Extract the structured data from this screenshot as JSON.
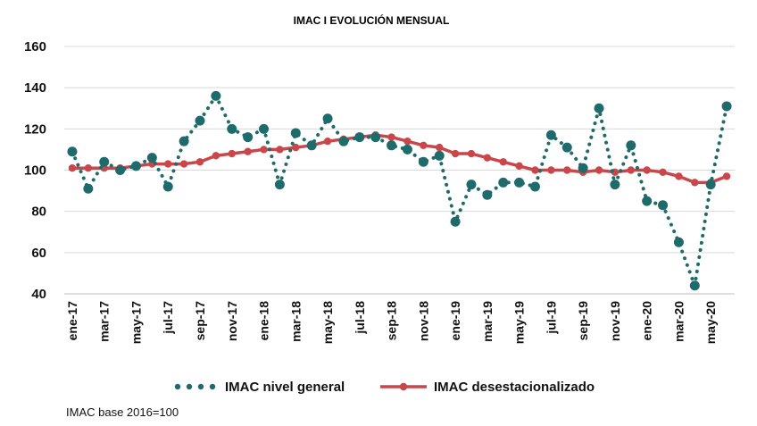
{
  "chart_data": {
    "type": "line",
    "title": "IMAC I EVOLUCIÓN MENSUAL",
    "xlabel": "",
    "ylabel": "",
    "ylim": [
      40,
      160
    ],
    "yticks": [
      40,
      60,
      80,
      100,
      120,
      140,
      160
    ],
    "grid": true,
    "legend_position": "bottom",
    "x": [
      "ene-17",
      "feb-17",
      "mar-17",
      "abr-17",
      "may-17",
      "jun-17",
      "jul-17",
      "ago-17",
      "sep-17",
      "oct-17",
      "nov-17",
      "dic-17",
      "ene-18",
      "feb-18",
      "mar-18",
      "abr-18",
      "may-18",
      "jun-18",
      "jul-18",
      "ago-18",
      "sep-18",
      "oct-18",
      "nov-18",
      "dic-18",
      "ene-19",
      "feb-19",
      "mar-19",
      "abr-19",
      "may-19",
      "jun-19",
      "jul-19",
      "ago-19",
      "sep-19",
      "oct-19",
      "nov-19",
      "dic-19",
      "ene-20",
      "feb-20",
      "mar-20",
      "abr-20",
      "may-20",
      "jun-20"
    ],
    "x_tick_labels": [
      "ene-17",
      "mar-17",
      "may-17",
      "jul-17",
      "sep-17",
      "nov-17",
      "ene-18",
      "mar-18",
      "may-18",
      "jul-18",
      "sep-18",
      "nov-18",
      "ene-19",
      "mar-19",
      "may-19",
      "jul-19",
      "sep-19",
      "nov-19",
      "ene-20",
      "mar-20",
      "may-20"
    ],
    "series": [
      {
        "name": "IMAC nivel general",
        "color": "#1f6b6b",
        "style": "dotted",
        "values": [
          109,
          91,
          104,
          100,
          102,
          106,
          92,
          114,
          124,
          136,
          120,
          116,
          120,
          93,
          118,
          112,
          125,
          114,
          116,
          116,
          112,
          110,
          104,
          107,
          75,
          93,
          88,
          94,
          94,
          92,
          117,
          111,
          101,
          130,
          93,
          112,
          85,
          83,
          65,
          44,
          93,
          131
        ]
      },
      {
        "name": "IMAC desestacionalizado",
        "color": "#c9474a",
        "style": "solid",
        "values": [
          101,
          101,
          101,
          101,
          102,
          103,
          103,
          103,
          104,
          107,
          108,
          109,
          110,
          110,
          111,
          112,
          114,
          115,
          116,
          117,
          116,
          114,
          112,
          111,
          108,
          108,
          106,
          104,
          102,
          100,
          100,
          100,
          99,
          100,
          99,
          100,
          100,
          99,
          97,
          94,
          94,
          97
        ]
      }
    ]
  },
  "footnote": "IMAC base 2016=100"
}
